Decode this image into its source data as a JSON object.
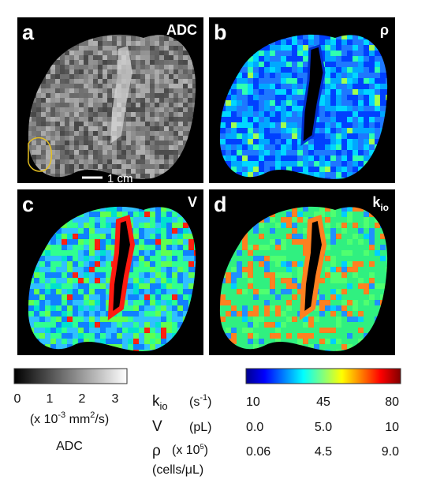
{
  "panels": [
    {
      "label": "a",
      "map": "ADC"
    },
    {
      "label": "b",
      "map": "ρ"
    },
    {
      "label": "c",
      "map": "V"
    },
    {
      "label": "d",
      "map": {
        "base": "k",
        "sub": "io"
      }
    }
  ],
  "scale_bar": "1 cm",
  "adc_colorbar": {
    "ticks": [
      "0",
      "1",
      "2",
      "3"
    ],
    "unit": {
      "prefix": "(x 10",
      "sup": "-3",
      "mid": " mm",
      "sup2": "2",
      "suffix": "/s)"
    },
    "title": "ADC"
  },
  "parameter_colorbar": {
    "rows": [
      {
        "symbol": {
          "base": "k",
          "sub": "io"
        },
        "unit": {
          "prefix": "(s",
          "sup": "-1",
          "suffix": ")"
        },
        "ticks": [
          "10",
          "45",
          "80"
        ]
      },
      {
        "symbol": "V",
        "unit": "(pL)",
        "ticks": [
          "0.0",
          "5.0",
          "10"
        ]
      },
      {
        "symbol": "ρ",
        "unit": {
          "prefix": "(x 10",
          "sup": "5",
          "suffix": ")"
        },
        "unit2": "(cells/μL)",
        "ticks": [
          "0.06",
          "4.5",
          "9.0"
        ]
      }
    ]
  }
}
